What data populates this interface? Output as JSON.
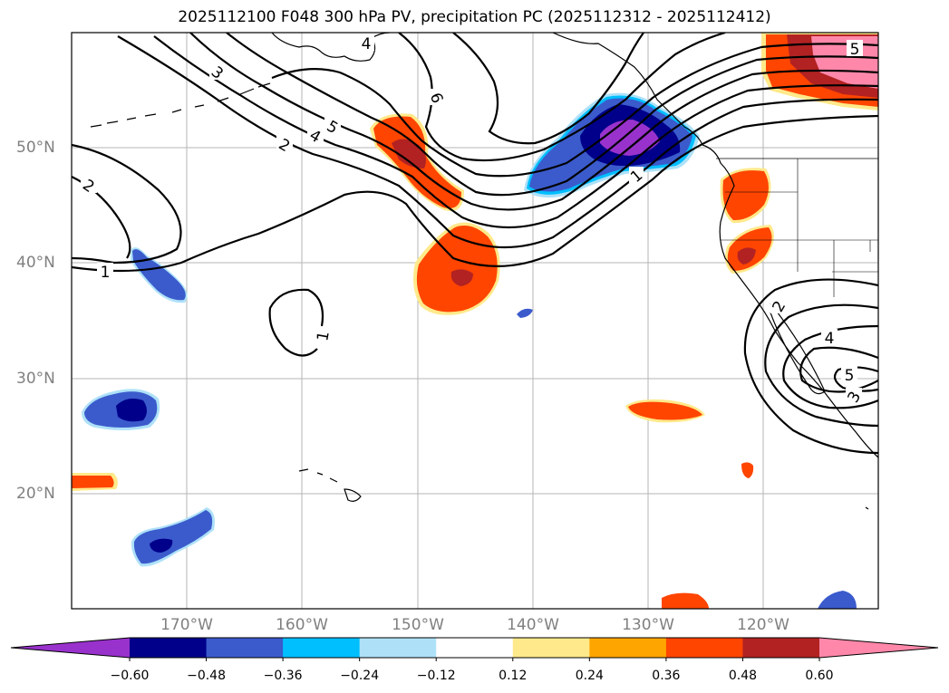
{
  "title": "2025112100 F048 300 hPa PV, precipitation PC (2025112312 - 2025112412)",
  "lon_labels": [
    "170°W",
    "160°W",
    "150°W",
    "140°W",
    "130°W",
    "120°W"
  ],
  "lat_labels": [
    "50°N",
    "40°N",
    "30°N",
    "20°N"
  ],
  "contour_labels": [
    "1",
    "1",
    "1",
    "2",
    "2",
    "2",
    "3",
    "3",
    "4",
    "4",
    "4",
    "5",
    "5",
    "5",
    "6"
  ],
  "colorbar": {
    "ticks": [
      "−0.60",
      "−0.48",
      "−0.36",
      "−0.24",
      "−0.12",
      "0.12",
      "0.24",
      "0.36",
      "0.48",
      "0.60"
    ],
    "colors": [
      "#9932cc",
      "#00008b",
      "#3b5bcc",
      "#00bfff",
      "#aee1f8",
      "#ffffff",
      "#ffe98a",
      "#ffa500",
      "#ff4500",
      "#b22222",
      "#ff88aa"
    ]
  }
}
